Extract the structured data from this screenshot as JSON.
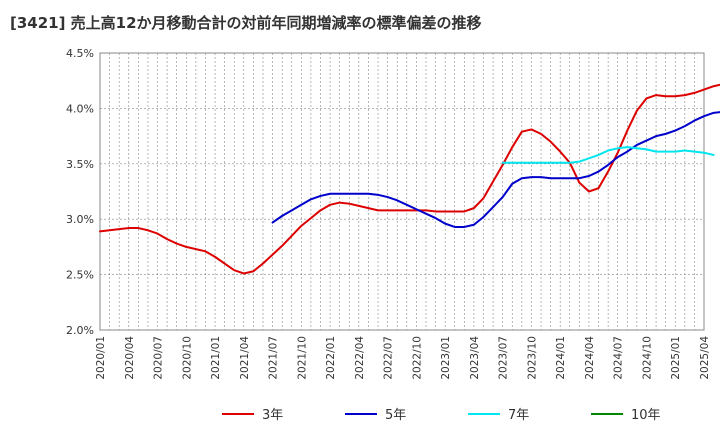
{
  "chart_data": {
    "type": "line",
    "title": "[3421]  売上高12か月移動合計の対前年同期増減率の標準偏差の推移",
    "xlabel": "",
    "ylabel": "",
    "ylim": [
      0.02,
      0.045
    ],
    "y_ticks": [
      "2.0%",
      "2.5%",
      "3.0%",
      "3.5%",
      "4.0%",
      "4.5%"
    ],
    "x_ticks": [
      "2020/01",
      "2020/04",
      "2020/07",
      "2020/10",
      "2021/01",
      "2021/04",
      "2021/07",
      "2021/10",
      "2022/01",
      "2022/04",
      "2022/07",
      "2022/10",
      "2023/01",
      "2023/04",
      "2023/07",
      "2023/10",
      "2024/01",
      "2024/04",
      "2024/07",
      "2024/10",
      "2025/01",
      "2025/04"
    ],
    "grid": true,
    "legend_position": "bottom",
    "colors": {
      "3年": "#dd0000",
      "5年": "#0000cc",
      "7年": "#00e5ee",
      "10年": "#008800"
    },
    "series": [
      {
        "name": "3年",
        "color": "#dd0000",
        "start": "2020/01",
        "values": [
          0.0289,
          0.029,
          0.0291,
          0.0292,
          0.0292,
          0.029,
          0.0287,
          0.0282,
          0.0278,
          0.0275,
          0.0273,
          0.0271,
          0.0266,
          0.026,
          0.0254,
          0.0251,
          0.0253,
          0.026,
          0.0268,
          0.0276,
          0.0285,
          0.0294,
          0.0301,
          0.0308,
          0.0313,
          0.0315,
          0.0314,
          0.0312,
          0.031,
          0.0308,
          0.0308,
          0.0308,
          0.0308,
          0.0308,
          0.0308,
          0.0307,
          0.0307,
          0.0307,
          0.0307,
          0.031,
          0.0319,
          0.0334,
          0.0349,
          0.0365,
          0.0379,
          0.0381,
          0.0377,
          0.037,
          0.0361,
          0.0351,
          0.0333,
          0.0325,
          0.0328,
          0.0343,
          0.036,
          0.038,
          0.0398,
          0.0409,
          0.0412,
          0.0411,
          0.0411,
          0.0412,
          0.0414,
          0.0417,
          0.042,
          0.0422,
          0.0423
        ]
      },
      {
        "name": "5年",
        "color": "#0000cc",
        "start": "2021/07",
        "values": [
          0.0297,
          0.0303,
          0.0308,
          0.0313,
          0.0318,
          0.0321,
          0.0323,
          0.0323,
          0.0323,
          0.0323,
          0.0323,
          0.0322,
          0.032,
          0.0317,
          0.0313,
          0.0309,
          0.0305,
          0.0301,
          0.0296,
          0.0293,
          0.0293,
          0.0295,
          0.0302,
          0.0311,
          0.032,
          0.0332,
          0.0337,
          0.0338,
          0.0338,
          0.0337,
          0.0337,
          0.0337,
          0.0337,
          0.0339,
          0.0343,
          0.0349,
          0.0356,
          0.0361,
          0.0367,
          0.0371,
          0.0375,
          0.0377,
          0.038,
          0.0384,
          0.0389,
          0.0393,
          0.0396,
          0.0397,
          0.0397
        ]
      },
      {
        "name": "7年",
        "color": "#00e5ee",
        "start": "2023/07",
        "values": [
          0.0351,
          0.0351,
          0.0351,
          0.0351,
          0.0351,
          0.0351,
          0.0351,
          0.0351,
          0.0352,
          0.0355,
          0.0358,
          0.0362,
          0.0364,
          0.0365,
          0.0364,
          0.0363,
          0.0361,
          0.0361,
          0.0361,
          0.0362,
          0.0361,
          0.036,
          0.0358
        ]
      },
      {
        "name": "10年",
        "color": "#008800",
        "start": "2025/01",
        "values": []
      }
    ]
  }
}
